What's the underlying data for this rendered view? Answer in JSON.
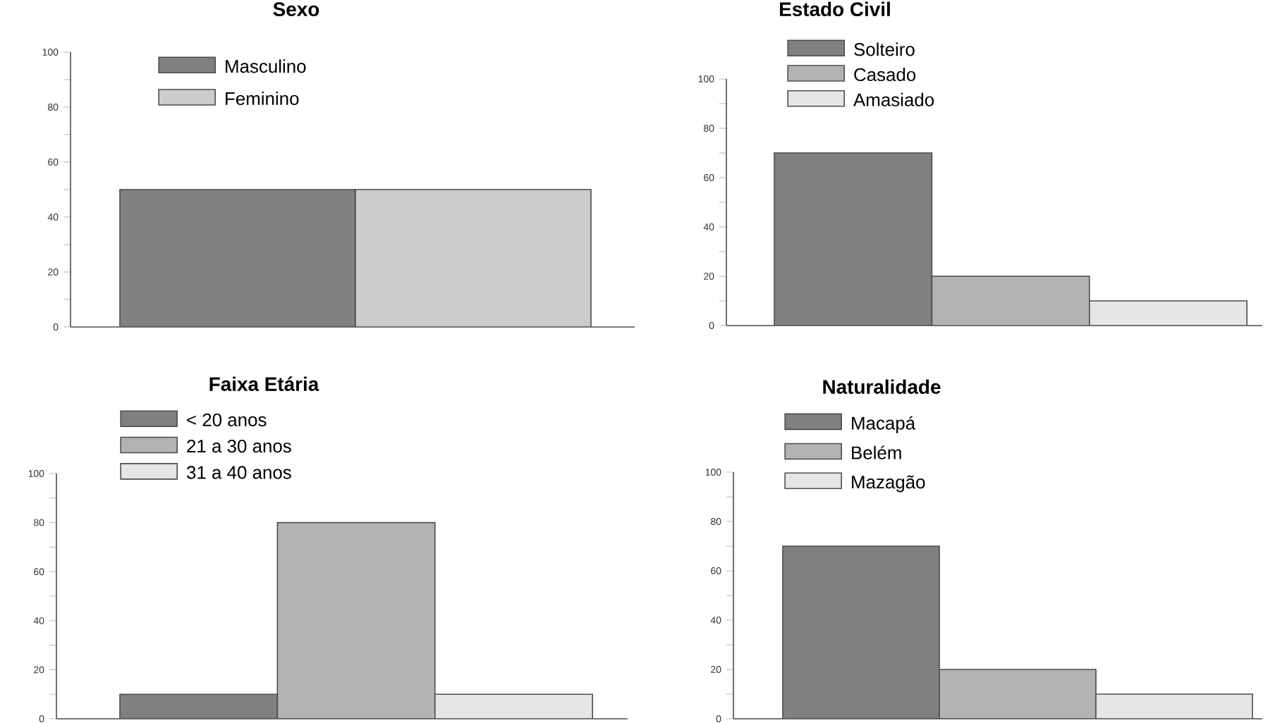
{
  "chart_data": [
    {
      "type": "bar",
      "title": "Sexo",
      "categories": [
        null
      ],
      "ylim": [
        0,
        100
      ],
      "yticks": [
        0,
        20,
        40,
        60,
        80,
        100
      ],
      "legend": "top",
      "series": [
        {
          "name": "Masculino",
          "color": "#808080",
          "values": [
            50
          ]
        },
        {
          "name": "Feminino",
          "color": "#cccccc",
          "values": [
            50
          ]
        }
      ]
    },
    {
      "type": "bar",
      "title": "Estado Civil",
      "categories": [
        null
      ],
      "ylim": [
        0,
        100
      ],
      "yticks": [
        0,
        20,
        40,
        60,
        80,
        100
      ],
      "legend": "top",
      "series": [
        {
          "name": "Solteiro",
          "color": "#808080",
          "values": [
            70
          ]
        },
        {
          "name": "Casado",
          "color": "#b3b3b3",
          "values": [
            20
          ]
        },
        {
          "name": "Amasiado",
          "color": "#e6e6e6",
          "values": [
            10
          ]
        }
      ]
    },
    {
      "type": "bar",
      "title": "Faixa Etária",
      "categories": [
        null
      ],
      "ylim": [
        0,
        100
      ],
      "yticks": [
        0,
        20,
        40,
        60,
        80,
        100
      ],
      "legend": "top",
      "series": [
        {
          "name": "< 20 anos",
          "color": "#808080",
          "values": [
            10
          ]
        },
        {
          "name": "21 a 30 anos",
          "color": "#b3b3b3",
          "values": [
            80
          ]
        },
        {
          "name": "31 a 40 anos",
          "color": "#e6e6e6",
          "values": [
            10
          ]
        }
      ]
    },
    {
      "type": "bar",
      "title": "Naturalidade",
      "categories": [
        null
      ],
      "ylim": [
        0,
        100
      ],
      "yticks": [
        0,
        20,
        40,
        60,
        80,
        100
      ],
      "legend": "top",
      "series": [
        {
          "name": "Macapá",
          "color": "#808080",
          "values": [
            70
          ]
        },
        {
          "name": "Belém",
          "color": "#b3b3b3",
          "values": [
            20
          ]
        },
        {
          "name": "Mazagão",
          "color": "#e6e6e6",
          "values": [
            10
          ]
        }
      ]
    }
  ]
}
